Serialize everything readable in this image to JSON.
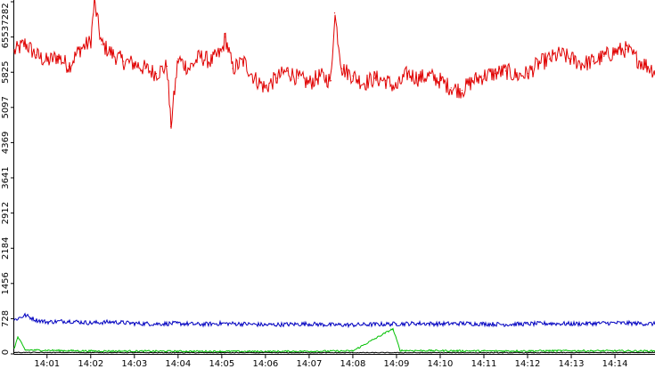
{
  "chart_data": {
    "type": "line",
    "title": "",
    "xlabel": "",
    "ylabel": "",
    "ylim": [
      0,
      7282
    ],
    "xlim": [
      "14:00:15",
      "14:14:55"
    ],
    "grid": false,
    "legend": "none",
    "y_ticks": [
      "0",
      "728",
      "1456",
      "2184",
      "2912",
      "3641",
      "4369",
      "5097",
      "5825",
      "6553",
      "7282"
    ],
    "x_ticks": [
      "14:01",
      "14:02",
      "14:03",
      "14:04",
      "14:05",
      "14:06",
      "14:07",
      "14:08",
      "14:09",
      "14:10",
      "14:11",
      "14:12",
      "14:13",
      "14:14"
    ],
    "series": [
      {
        "color": "#e00000",
        "baseline": 6000,
        "noise": 180,
        "values": [
          {
            "x": "14:00:15",
            "y": 6250
          },
          {
            "x": "14:00:30",
            "y": 6420
          },
          {
            "x": "14:00:45",
            "y": 6180
          },
          {
            "x": "14:01:00",
            "y": 6050
          },
          {
            "x": "14:01:15",
            "y": 6150
          },
          {
            "x": "14:01:30",
            "y": 5950
          },
          {
            "x": "14:01:45",
            "y": 6300
          },
          {
            "x": "14:02:00",
            "y": 6450
          },
          {
            "x": "14:02:05",
            "y": 7282
          },
          {
            "x": "14:02:15",
            "y": 6400
          },
          {
            "x": "14:02:30",
            "y": 6200
          },
          {
            "x": "14:02:45",
            "y": 6050
          },
          {
            "x": "14:03:00",
            "y": 6000
          },
          {
            "x": "14:03:15",
            "y": 5900
          },
          {
            "x": "14:03:30",
            "y": 5800
          },
          {
            "x": "14:03:45",
            "y": 5950
          },
          {
            "x": "14:03:50",
            "y": 4700
          },
          {
            "x": "14:04:00",
            "y": 6100
          },
          {
            "x": "14:04:15",
            "y": 5900
          },
          {
            "x": "14:04:30",
            "y": 6150
          },
          {
            "x": "14:04:45",
            "y": 6050
          },
          {
            "x": "14:05:00",
            "y": 6250
          },
          {
            "x": "14:05:05",
            "y": 6550
          },
          {
            "x": "14:05:15",
            "y": 5900
          },
          {
            "x": "14:05:30",
            "y": 6050
          },
          {
            "x": "14:05:45",
            "y": 5700
          },
          {
            "x": "14:06:00",
            "y": 5500
          },
          {
            "x": "14:06:15",
            "y": 5700
          },
          {
            "x": "14:06:30",
            "y": 5850
          },
          {
            "x": "14:06:45",
            "y": 5700
          },
          {
            "x": "14:07:00",
            "y": 5600
          },
          {
            "x": "14:07:15",
            "y": 5750
          },
          {
            "x": "14:07:30",
            "y": 5650
          },
          {
            "x": "14:07:35",
            "y": 7050
          },
          {
            "x": "14:07:45",
            "y": 5900
          },
          {
            "x": "14:08:00",
            "y": 5750
          },
          {
            "x": "14:08:15",
            "y": 5600
          },
          {
            "x": "14:08:30",
            "y": 5700
          },
          {
            "x": "14:08:45",
            "y": 5650
          },
          {
            "x": "14:09:00",
            "y": 5500
          },
          {
            "x": "14:09:15",
            "y": 5800
          },
          {
            "x": "14:09:30",
            "y": 5700
          },
          {
            "x": "14:09:45",
            "y": 5750
          },
          {
            "x": "14:10:00",
            "y": 5650
          },
          {
            "x": "14:10:15",
            "y": 5500
          },
          {
            "x": "14:10:30",
            "y": 5450
          },
          {
            "x": "14:10:45",
            "y": 5650
          },
          {
            "x": "14:11:00",
            "y": 5750
          },
          {
            "x": "14:11:15",
            "y": 5800
          },
          {
            "x": "14:11:30",
            "y": 5850
          },
          {
            "x": "14:11:45",
            "y": 5750
          },
          {
            "x": "14:12:00",
            "y": 5800
          },
          {
            "x": "14:12:15",
            "y": 6000
          },
          {
            "x": "14:12:30",
            "y": 6100
          },
          {
            "x": "14:12:45",
            "y": 6200
          },
          {
            "x": "14:13:00",
            "y": 6100
          },
          {
            "x": "14:13:15",
            "y": 6000
          },
          {
            "x": "14:13:30",
            "y": 6050
          },
          {
            "x": "14:13:45",
            "y": 6150
          },
          {
            "x": "14:14:00",
            "y": 6250
          },
          {
            "x": "14:14:15",
            "y": 6300
          },
          {
            "x": "14:14:30",
            "y": 6100
          },
          {
            "x": "14:14:45",
            "y": 5950
          },
          {
            "x": "14:14:55",
            "y": 5850
          }
        ]
      },
      {
        "color": "#0000c0",
        "baseline": 640,
        "noise": 45,
        "values": [
          {
            "x": "14:00:15",
            "y": 700
          },
          {
            "x": "14:00:30",
            "y": 800
          },
          {
            "x": "14:00:45",
            "y": 700
          },
          {
            "x": "14:01:00",
            "y": 660
          },
          {
            "x": "14:01:30",
            "y": 680
          },
          {
            "x": "14:02:00",
            "y": 640
          },
          {
            "x": "14:02:30",
            "y": 660
          },
          {
            "x": "14:03:00",
            "y": 630
          },
          {
            "x": "14:03:30",
            "y": 620
          },
          {
            "x": "14:04:00",
            "y": 630
          },
          {
            "x": "14:04:30",
            "y": 610
          },
          {
            "x": "14:05:00",
            "y": 630
          },
          {
            "x": "14:05:30",
            "y": 620
          },
          {
            "x": "14:06:00",
            "y": 600
          },
          {
            "x": "14:06:30",
            "y": 610
          },
          {
            "x": "14:07:00",
            "y": 620
          },
          {
            "x": "14:07:30",
            "y": 600
          },
          {
            "x": "14:08:00",
            "y": 600
          },
          {
            "x": "14:08:30",
            "y": 610
          },
          {
            "x": "14:09:00",
            "y": 620
          },
          {
            "x": "14:09:30",
            "y": 630
          },
          {
            "x": "14:10:00",
            "y": 620
          },
          {
            "x": "14:10:30",
            "y": 630
          },
          {
            "x": "14:11:00",
            "y": 620
          },
          {
            "x": "14:11:30",
            "y": 610
          },
          {
            "x": "14:12:00",
            "y": 620
          },
          {
            "x": "14:12:30",
            "y": 630
          },
          {
            "x": "14:13:00",
            "y": 620
          },
          {
            "x": "14:13:30",
            "y": 630
          },
          {
            "x": "14:14:00",
            "y": 640
          },
          {
            "x": "14:14:30",
            "y": 630
          },
          {
            "x": "14:14:55",
            "y": 620
          }
        ]
      },
      {
        "color": "#00c000",
        "baseline": 60,
        "noise": 18,
        "values": [
          {
            "x": "14:00:15",
            "y": 120
          },
          {
            "x": "14:00:20",
            "y": 350
          },
          {
            "x": "14:00:30",
            "y": 80
          },
          {
            "x": "14:02:00",
            "y": 60
          },
          {
            "x": "14:04:00",
            "y": 55
          },
          {
            "x": "14:06:00",
            "y": 50
          },
          {
            "x": "14:08:00",
            "y": 60
          },
          {
            "x": "14:08:55",
            "y": 520
          },
          {
            "x": "14:09:05",
            "y": 70
          },
          {
            "x": "14:11:00",
            "y": 60
          },
          {
            "x": "14:13:00",
            "y": 65
          },
          {
            "x": "14:14:55",
            "y": 60
          }
        ]
      },
      {
        "color": "#000000",
        "baseline": 25,
        "noise": 8,
        "values": [
          {
            "x": "14:00:15",
            "y": 30
          },
          {
            "x": "14:04:00",
            "y": 25
          },
          {
            "x": "14:08:00",
            "y": 25
          },
          {
            "x": "14:12:00",
            "y": 25
          },
          {
            "x": "14:14:55",
            "y": 30
          }
        ]
      }
    ]
  }
}
